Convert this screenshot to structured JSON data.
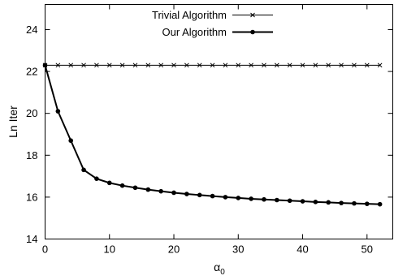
{
  "chart_data": {
    "type": "line",
    "title": "",
    "xlabel": "α",
    "xlabel_subscript": "0",
    "ylabel": "Ln Iter",
    "xlim": [
      0,
      54
    ],
    "ylim": [
      14,
      25.2
    ],
    "x_ticks": [
      0,
      10,
      20,
      30,
      40,
      50
    ],
    "y_ticks": [
      14,
      16,
      18,
      20,
      22,
      24
    ],
    "grid": false,
    "legend_position": "top-center",
    "series": [
      {
        "name": "Trivial Algorithm",
        "marker": "x",
        "color": "#000000",
        "x": [
          0,
          2,
          4,
          6,
          8,
          10,
          12,
          14,
          16,
          18,
          20,
          22,
          24,
          26,
          28,
          30,
          32,
          34,
          36,
          38,
          40,
          42,
          44,
          46,
          48,
          50,
          52
        ],
        "y": [
          22.3,
          22.3,
          22.3,
          22.3,
          22.3,
          22.3,
          22.3,
          22.3,
          22.3,
          22.3,
          22.3,
          22.3,
          22.3,
          22.3,
          22.3,
          22.3,
          22.3,
          22.3,
          22.3,
          22.3,
          22.3,
          22.3,
          22.3,
          22.3,
          22.3,
          22.3,
          22.3
        ]
      },
      {
        "name": "Our Algorithm",
        "marker": "circle",
        "color": "#000000",
        "x": [
          0,
          2,
          4,
          6,
          8,
          10,
          12,
          14,
          16,
          18,
          20,
          22,
          24,
          26,
          28,
          30,
          32,
          34,
          36,
          38,
          40,
          42,
          44,
          46,
          48,
          50,
          52
        ],
        "y": [
          22.3,
          20.1,
          18.7,
          17.3,
          16.88,
          16.68,
          16.55,
          16.45,
          16.36,
          16.28,
          16.21,
          16.15,
          16.1,
          16.05,
          16.0,
          15.96,
          15.92,
          15.89,
          15.86,
          15.83,
          15.8,
          15.77,
          15.75,
          15.72,
          15.7,
          15.68,
          15.66
        ]
      }
    ]
  }
}
